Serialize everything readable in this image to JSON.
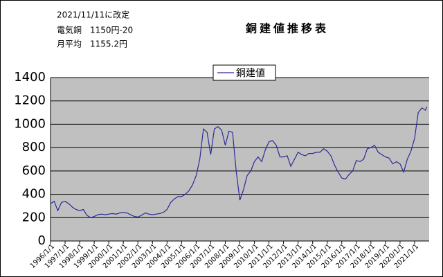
{
  "chart_data": {
    "type": "line",
    "title": "銅建値推移表",
    "notes": [
      "2021/11/11に改定",
      "電気銅　1150円-20",
      "月平均　1155.2円"
    ],
    "x": [
      "1996/1/1",
      "1996/4/1",
      "1996/7/1",
      "1996/10/1",
      "1997/1/1",
      "1997/4/1",
      "1997/7/1",
      "1997/10/1",
      "1998/1/1",
      "1998/4/1",
      "1998/7/1",
      "1998/10/1",
      "1999/1/1",
      "1999/4/1",
      "1999/7/1",
      "1999/10/1",
      "2000/1/1",
      "2000/4/1",
      "2000/7/1",
      "2000/10/1",
      "2001/1/1",
      "2001/4/1",
      "2001/7/1",
      "2001/10/1",
      "2002/1/1",
      "2002/4/1",
      "2002/7/1",
      "2002/10/1",
      "2003/1/1",
      "2003/4/1",
      "2003/7/1",
      "2003/10/1",
      "2004/1/1",
      "2004/4/1",
      "2004/7/1",
      "2004/10/1",
      "2005/1/1",
      "2005/4/1",
      "2005/7/1",
      "2005/10/1",
      "2006/1/1",
      "2006/4/1",
      "2006/7/1",
      "2006/10/1",
      "2007/1/1",
      "2007/4/1",
      "2007/7/1",
      "2007/10/1",
      "2008/1/1",
      "2008/4/1",
      "2008/7/1",
      "2008/10/1",
      "2009/1/1",
      "2009/4/1",
      "2009/7/1",
      "2009/10/1",
      "2010/1/1",
      "2010/4/1",
      "2010/7/1",
      "2010/10/1",
      "2011/1/1",
      "2011/4/1",
      "2011/7/1",
      "2011/10/1",
      "2012/1/1",
      "2012/4/1",
      "2012/7/1",
      "2012/10/1",
      "2013/1/1",
      "2013/4/1",
      "2013/7/1",
      "2013/10/1",
      "2014/1/1",
      "2014/4/1",
      "2014/7/1",
      "2014/10/1",
      "2015/1/1",
      "2015/4/1",
      "2015/7/1",
      "2015/10/1",
      "2016/1/1",
      "2016/4/1",
      "2016/7/1",
      "2016/10/1",
      "2017/1/1",
      "2017/4/1",
      "2017/7/1",
      "2017/10/1",
      "2018/1/1",
      "2018/4/1",
      "2018/7/1",
      "2018/10/1",
      "2019/1/1",
      "2019/4/1",
      "2019/7/1",
      "2019/10/1",
      "2020/1/1",
      "2020/4/1",
      "2020/7/1",
      "2020/10/1",
      "2021/1/1",
      "2021/4/1",
      "2021/7/1",
      "2021/10/1",
      "2021/11/1"
    ],
    "series": [
      {
        "name": "銅建値",
        "color": "#2a2a9a",
        "values": [
          320,
          340,
          260,
          330,
          340,
          320,
          290,
          270,
          260,
          270,
          220,
          200,
          210,
          225,
          230,
          225,
          230,
          235,
          230,
          240,
          245,
          240,
          225,
          210,
          205,
          220,
          240,
          230,
          225,
          230,
          235,
          245,
          270,
          330,
          360,
          380,
          380,
          400,
          430,
          480,
          560,
          700,
          960,
          930,
          740,
          960,
          980,
          950,
          820,
          940,
          930,
          600,
          350,
          440,
          560,
          600,
          680,
          720,
          680,
          780,
          850,
          860,
          820,
          720,
          720,
          730,
          640,
          700,
          760,
          740,
          730,
          750,
          750,
          760,
          760,
          790,
          770,
          730,
          650,
          590,
          540,
          530,
          570,
          600,
          690,
          680,
          700,
          790,
          800,
          820,
          760,
          740,
          720,
          710,
          660,
          680,
          660,
          590,
          700,
          770,
          880,
          1100,
          1140,
          1120,
          1150
        ]
      }
    ],
    "xlim": [
      "1996/1/1",
      "2022/1/1"
    ],
    "xticks": [
      "1996/1/1",
      "1997/1/1",
      "1998/1/1",
      "1999/1/1",
      "2000/1/1",
      "2001/1/1",
      "2002/1/1",
      "2003/1/1",
      "2004/1/1",
      "2005/1/1",
      "2006/1/1",
      "2007/1/1",
      "2008/1/1",
      "2009/1/1",
      "2010/1/1",
      "2011/1/1",
      "2012/1/1",
      "2013/1/1",
      "2014/1/1",
      "2015/1/1",
      "2016/1/1",
      "2017/1/1",
      "2018/1/1",
      "2019/1/1",
      "2020/1/1",
      "2021/1/1"
    ],
    "ylim": [
      0,
      1400
    ],
    "yticks": [
      0,
      200,
      400,
      600,
      800,
      1000,
      1200,
      1400
    ],
    "grid": true
  }
}
